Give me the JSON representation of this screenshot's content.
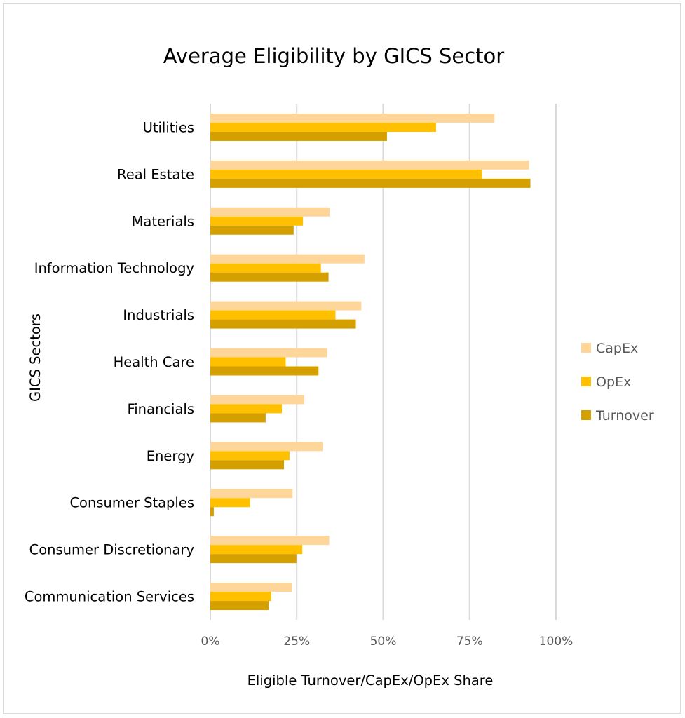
{
  "chart_data": {
    "type": "bar",
    "orientation": "horizontal",
    "title": "Average Eligibility by GICS Sector",
    "xlabel": "Eligible Turnover/CapEx/OpEx Share",
    "ylabel": "GICS Sectors",
    "xlim": [
      0,
      100
    ],
    "xticks": [
      "0%",
      "25%",
      "50%",
      "75%",
      "100%"
    ],
    "grid": true,
    "legend_position": "right",
    "categories": [
      "Utilities",
      "Real Estate",
      "Materials",
      "Information Technology",
      "Industrials",
      "Health Care",
      "Financials",
      "Energy",
      "Consumer Staples",
      "Consumer Discretionary",
      "Communication Services"
    ],
    "series": [
      {
        "name": "CapEx",
        "color": "#ffd699",
        "values": [
          82.2,
          92.2,
          34.5,
          44.6,
          43.7,
          33.8,
          27.2,
          32.5,
          23.8,
          34.4,
          23.6
        ]
      },
      {
        "name": "OpEx",
        "color": "#ffc000",
        "values": [
          65.3,
          78.6,
          26.8,
          32.0,
          36.2,
          21.8,
          20.7,
          22.9,
          11.5,
          26.6,
          17.6
        ]
      },
      {
        "name": "Turnover",
        "color": "#d4a000",
        "values": [
          51.1,
          92.6,
          24.1,
          34.2,
          42.1,
          31.3,
          16.0,
          21.3,
          1.0,
          24.9,
          16.9
        ]
      }
    ]
  }
}
